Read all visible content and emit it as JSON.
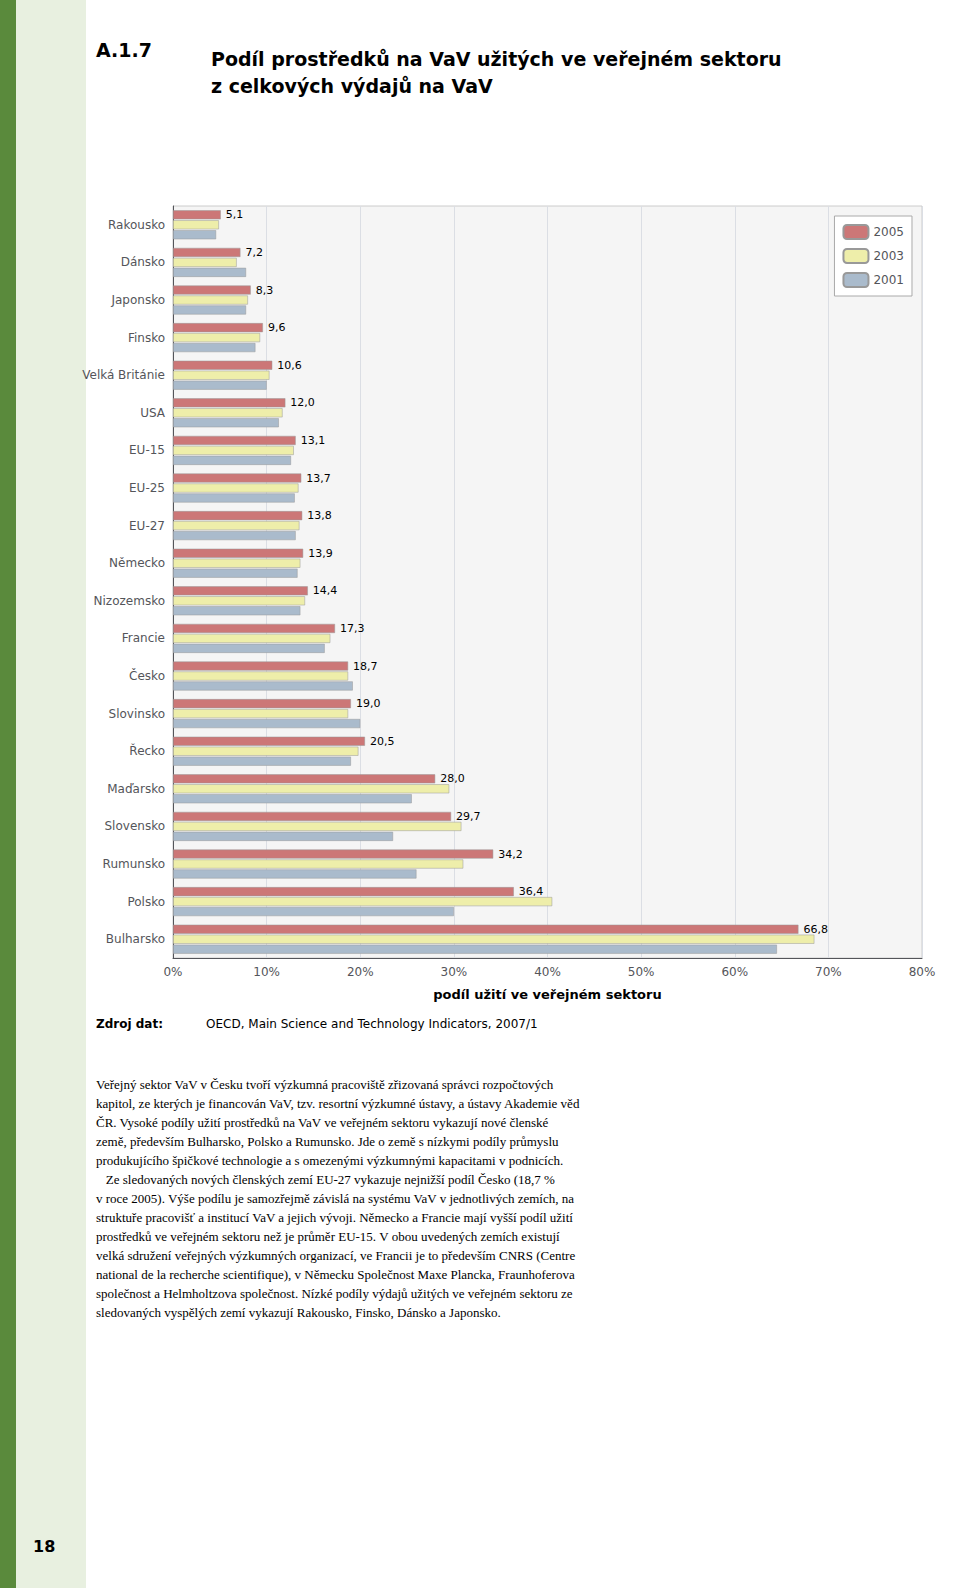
{
  "chart_data": {
    "type": "bar",
    "orientation": "horizontal",
    "title": "Podíl prostředků na VaV užitých ve veřejném sektoru\nz celkových výdajů na VaV",
    "xlabel": "podíl užití ve veřejném sektoru",
    "categories": [
      "Rakousko",
      "Dánsko",
      "Japonsko",
      "Finsko",
      "Velká Británie",
      "USA",
      "EU-15",
      "EU-25",
      "EU-27",
      "Německo",
      "Nizozemsko",
      "Francie",
      "Česko",
      "Slovinsko",
      "Řecko",
      "Maďarsko",
      "Slovensko",
      "Rumunsko",
      "Polsko",
      "Bulharsko"
    ],
    "series": [
      {
        "name": "2005",
        "color": "#cc7777",
        "values": [
          5.1,
          7.2,
          8.3,
          9.6,
          10.6,
          12.0,
          13.1,
          13.7,
          13.8,
          13.9,
          14.4,
          17.3,
          18.7,
          19.0,
          20.5,
          28.0,
          29.7,
          34.2,
          36.4,
          66.8
        ],
        "data_labels": true,
        "value_labels": [
          "5,1",
          "7,2",
          "8,3",
          "9,6",
          "10,6",
          "12,0",
          "13,1",
          "13,7",
          "13,8",
          "13,9",
          "14,4",
          "17,3",
          "18,7",
          "19,0",
          "20,5",
          "28,0",
          "29,7",
          "34,2",
          "36,4",
          "66,8"
        ]
      },
      {
        "name": "2003",
        "color": "#eeeeaa",
        "values": [
          4.9,
          6.8,
          8.0,
          9.3,
          10.3,
          11.7,
          12.9,
          13.4,
          13.5,
          13.6,
          14.1,
          16.8,
          18.7,
          18.7,
          19.8,
          29.5,
          30.8,
          31.0,
          40.5,
          68.5
        ]
      },
      {
        "name": "2001",
        "color": "#aabbcc",
        "values": [
          4.6,
          7.8,
          7.8,
          8.8,
          10.0,
          11.3,
          12.6,
          13.0,
          13.1,
          13.3,
          13.6,
          16.2,
          19.2,
          20.0,
          19.0,
          25.5,
          23.5,
          26.0,
          30.0,
          64.5
        ]
      }
    ],
    "xlim": [
      0,
      80
    ],
    "xticks": [
      {
        "value": 0,
        "label": "0%"
      },
      {
        "value": 10,
        "label": "10%"
      },
      {
        "value": 20,
        "label": "20%"
      },
      {
        "value": 30,
        "label": "30%"
      },
      {
        "value": 40,
        "label": "40%"
      },
      {
        "value": 50,
        "label": "50%"
      },
      {
        "value": 60,
        "label": "60%"
      },
      {
        "value": 70,
        "label": "70%"
      },
      {
        "value": 80,
        "label": "80%"
      }
    ],
    "grid": true,
    "legend": "upper right",
    "annotations": [
      "A.1.7",
      "Zdroj dat:",
      "OECD, Main Science and Technology Indicators, 2007/1",
      "Veřejný sektor VaV v Česku tvoří výzkumná pracoviště zřizovaná správci rozpočtových\nkapitol, ze kterých je financován VaV, tzv. resortní výzkumné ústavy, a ústavy Akademie věd\nČR. Vysoké podíly užití prostředků na VaV ve veřejném sektoru vykazují nové členské\nzemě, především Bulharsko, Polsko a Rumunsko. Jde o země s nízkymi podíly průmyslu\nprodukujícího špičkové technologie a s omezenými výzkumnými kapacitami v podnicích.\n   Ze sledovaných nových členských zemí EU-27 vykazuje nejnižší podíl Česko (18,7 %\nv roce 2005). Výše podílu je samozřejmě závislá na systému VaV v jednotlivých zemích, na\nstruktuře pracovišť a institucí VaV a jejich vývoji. Německo a Francie mají vyšší podíl užití\nprostředků ve veřejném sektoru než je průměr EU-15. V obou uvedených zemích existují\nvelká sdružení veřejných výzkumných organizací, ve Francii je to především CNRS (Centre\nnational de la recherche scientifique), v Německu Společnost Maxe Plancka, Fraunhoferova\nspolečnost a Helmholtzova společnost. Nízké podíly výdajů užitých ve veřejném sektoru ze\nsledovaných vyspělých zemí vykazují Rakousko, Finsko, Dánsko a Japonsko.",
      "18"
    ]
  }
}
